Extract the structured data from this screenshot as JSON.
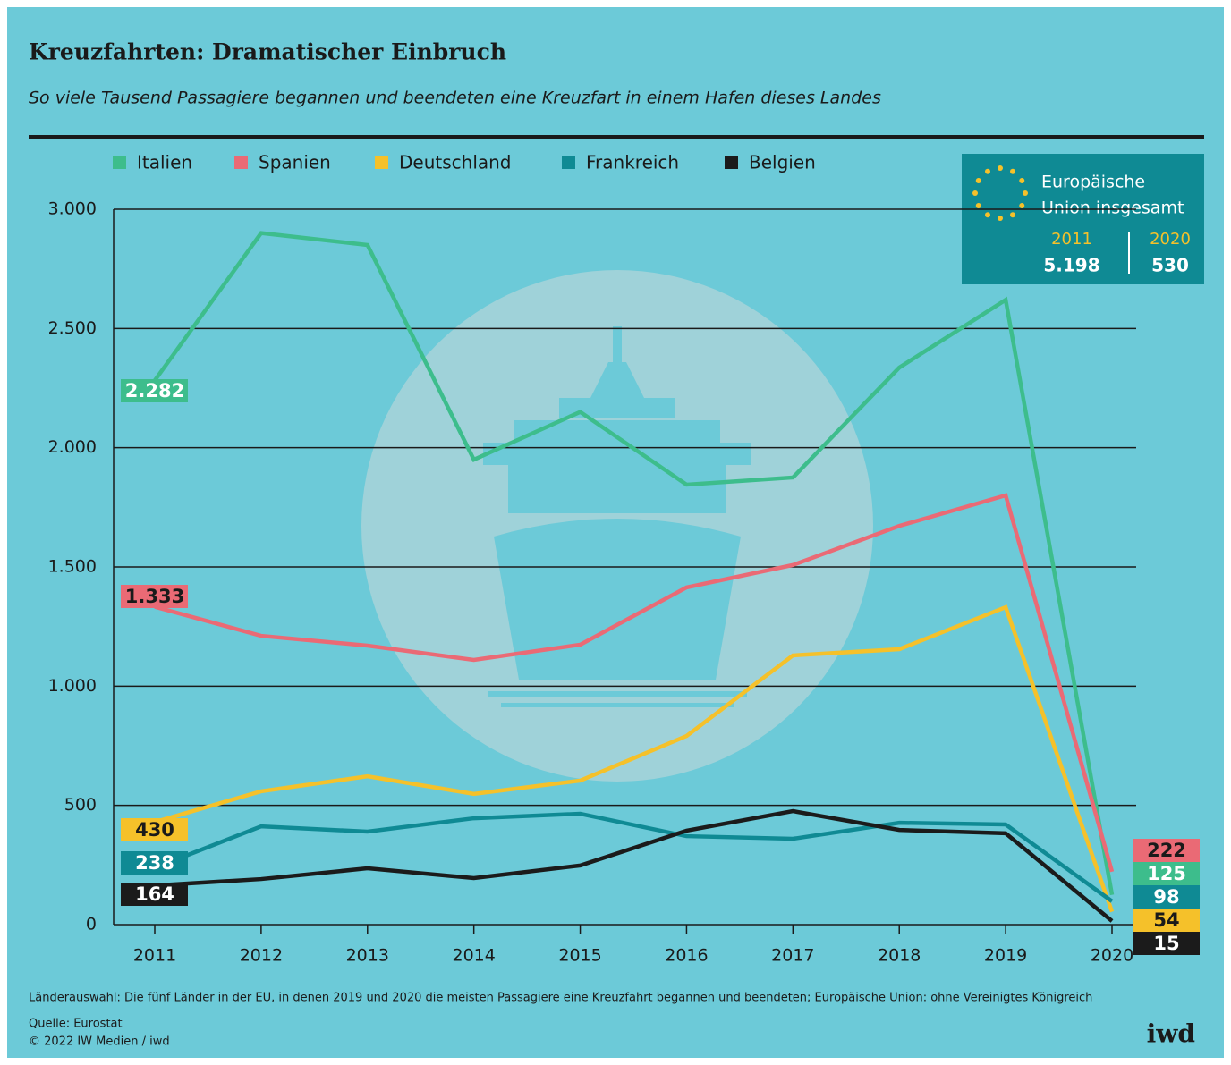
{
  "chart_data": {
    "type": "line",
    "title": "Kreuzfahrten: Dramatischer Einbruch",
    "subtitle": "So viele Tausend Passagiere begannen und beendeten eine Kreuzfart in einem Hafen dieses Landes",
    "categories": [
      "2011",
      "2012",
      "2013",
      "2014",
      "2015",
      "2016",
      "2017",
      "2018",
      "2019",
      "2020"
    ],
    "series": [
      {
        "name": "Italien",
        "color": "#3dbd8c",
        "values": [
          2282,
          2900,
          2850,
          1950,
          2150,
          1845,
          1875,
          2336,
          2620,
          125
        ],
        "value_labels": [
          "2.282",
          null,
          null,
          null,
          null,
          null,
          null,
          null,
          null,
          null
        ]
      },
      {
        "name": "Spanien",
        "color": "#ea6a75",
        "values": [
          1333,
          1211,
          1170,
          1110,
          1174,
          1414,
          1508,
          1672,
          1800,
          222
        ],
        "value_labels": [
          "1.333",
          null,
          null,
          null,
          null,
          null,
          null,
          null,
          null,
          null
        ]
      },
      {
        "name": "Deutschland",
        "color": "#f5c12a",
        "values": [
          430,
          559,
          622,
          548,
          604,
          791,
          1129,
          1155,
          1331,
          54
        ]
      },
      {
        "name": "Frankreich",
        "color": "#0f8a94",
        "values": [
          238,
          412,
          390,
          446,
          465,
          371,
          360,
          427,
          420,
          98
        ]
      },
      {
        "name": "Belgien",
        "color": "#1b1b1b",
        "values": [
          164,
          191,
          236,
          195,
          248,
          394,
          476,
          397,
          383,
          15
        ]
      }
    ],
    "ylim": [
      0,
      3000
    ],
    "yticks": [
      0,
      500,
      {
        "value": 1000,
        "label": "1.000"
      },
      {
        "value": 1500,
        "label": "1.500"
      },
      {
        "value": 2000,
        "label": "2.000"
      },
      {
        "value": 2500,
        "label": "2.500"
      },
      {
        "value": 3000,
        "label": "3.000"
      }
    ],
    "grid": true,
    "eu_box": {
      "title_line1": "Europäische",
      "title_line2": "Union insgesamt",
      "year_a": "2011",
      "value_a": "5.198",
      "year_b": "2020",
      "value_b": "530"
    },
    "note": "Länderauswahl: Die fünf Länder in der EU, in denen 2019 und 2020 die meisten Passagiere eine Kreuzfahrt begannen und beendeten; Europäische Union: ohne Vereinigtes Königreich",
    "source": "Quelle: Eurostat",
    "copyright": "© 2022 IW Medien / iwd",
    "logo": "iwd"
  }
}
